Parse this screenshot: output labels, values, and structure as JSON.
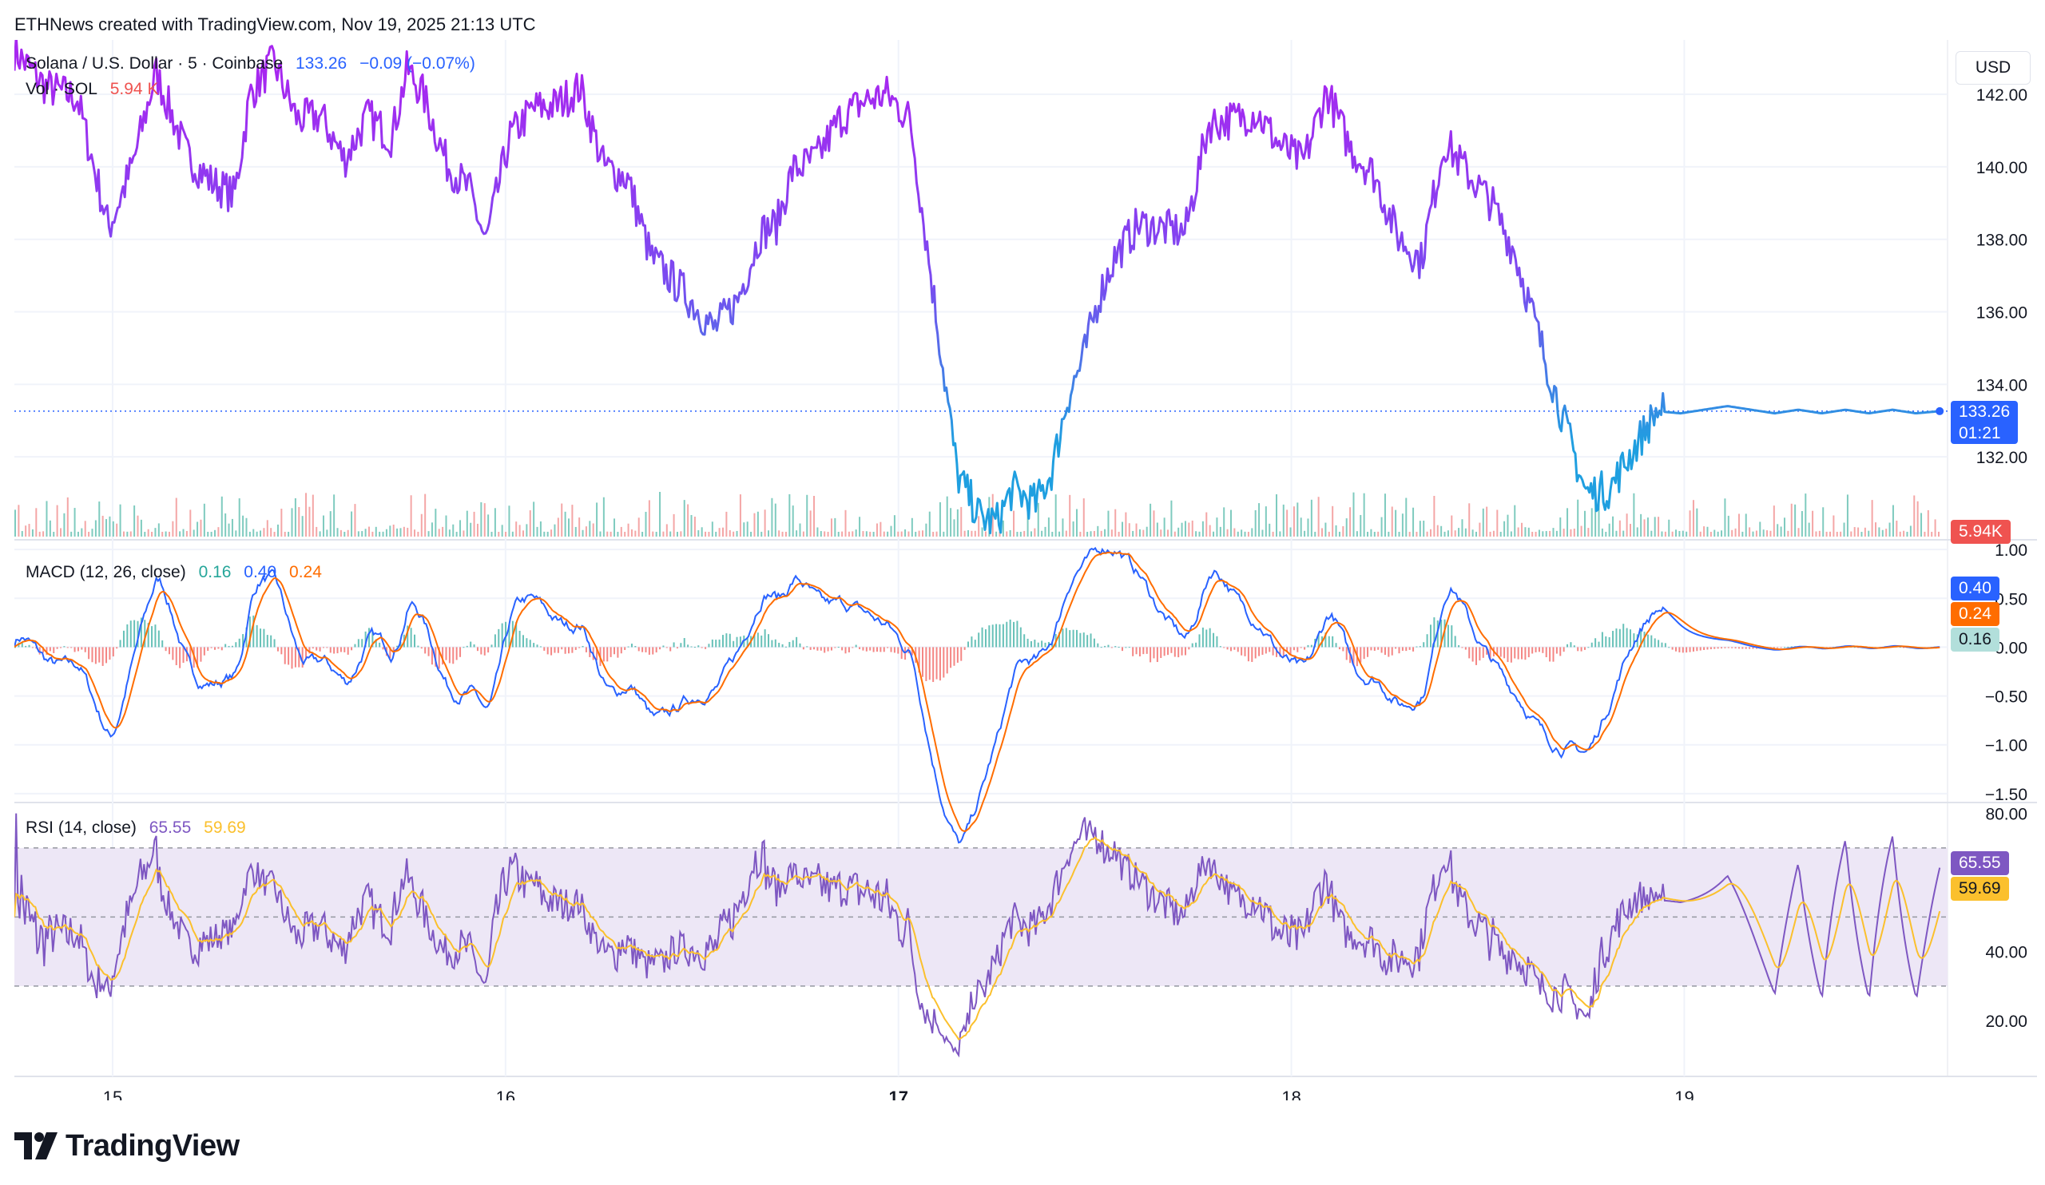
{
  "header": {
    "text": "ETHNews created with TradingView.com, Nov 19, 2025 21:13 UTC"
  },
  "currency": "USD",
  "price_legend": {
    "symbol": "Solana / U.S. Dollar · 5 · Coinbase",
    "last": "133.26",
    "change": "−0.09 (−0.07%)",
    "vol_label": "Vol · SOL",
    "vol_value": "5.94 K"
  },
  "macd_legend": {
    "title": "MACD (12, 26, close)",
    "hist": "0.16",
    "macd": "0.40",
    "signal": "0.24"
  },
  "rsi_legend": {
    "title": "RSI (14, close)",
    "rsi": "65.55",
    "ma": "59.69"
  },
  "price_labels": {
    "last": "133.26",
    "countdown": "01:21",
    "volume": "5.94K"
  },
  "macd_labels": {
    "macd": "0.40",
    "signal": "0.24",
    "hist": "0.16"
  },
  "rsi_labels": {
    "rsi": "65.55",
    "ma": "59.69"
  },
  "logo_text": "TradingView",
  "colors": {
    "price_high": "#a727f0",
    "price_low": "#1f9fe0",
    "vol_up": "#7fcbbf",
    "vol_down": "#f4a6a6",
    "macd": "#2962ff",
    "signal": "#ff6d00",
    "hist_up": "#26a69a",
    "hist_down": "#ef5350",
    "rsi": "#7e57c2",
    "rsi_ma": "#fbc02d",
    "rsi_band": "#ede7f6",
    "grid": "#f0f3fa",
    "axis_text": "#131722",
    "last_label": "#2962ff"
  },
  "chart_data": [
    {
      "type": "line",
      "name": "price",
      "x_ticks": [
        "15",
        "16",
        "17",
        "18",
        "19"
      ],
      "x_tick_pos": [
        0.25,
        1.25,
        2.25,
        3.25,
        4.25
      ],
      "y_ticks": [
        "142.00",
        "140.00",
        "138.00",
        "136.00",
        "134.00",
        "132.00"
      ],
      "ylim": [
        129.8,
        143.5
      ],
      "last_price": 133.26,
      "x": [
        0.0,
        0.08,
        0.16,
        0.24,
        0.3,
        0.36,
        0.44,
        0.5,
        0.56,
        0.6,
        0.66,
        0.72,
        0.78,
        0.84,
        0.9,
        0.96,
        1.0,
        1.04,
        1.1,
        1.16,
        1.2,
        1.26,
        1.32,
        1.38,
        1.44,
        1.5,
        1.56,
        1.62,
        1.7,
        1.78,
        1.84,
        1.9,
        1.94,
        1.98,
        2.04,
        2.1,
        2.16,
        2.22,
        2.28,
        2.34,
        2.4,
        2.46,
        2.5,
        2.54,
        2.6,
        2.64,
        2.68,
        2.72,
        2.76,
        2.8,
        2.86,
        2.92,
        2.98,
        3.04,
        3.1,
        3.16,
        3.22,
        3.28,
        3.34,
        3.4,
        3.46,
        3.52,
        3.58,
        3.64,
        3.7,
        3.76,
        3.82,
        3.88,
        3.94,
        4.0,
        4.06,
        4.12,
        4.18,
        4.24,
        4.3,
        4.36,
        4.42,
        4.48,
        4.54,
        4.6,
        4.66,
        4.72,
        4.78,
        4.84,
        4.9
      ],
      "values": [
        143.2,
        142.2,
        141.9,
        138.3,
        140.0,
        142.6,
        140.3,
        139.6,
        139.2,
        142.0,
        142.9,
        141.3,
        141.4,
        140.2,
        141.4,
        140.8,
        142.7,
        142.0,
        140.1,
        139.3,
        137.9,
        140.8,
        141.6,
        141.7,
        142.2,
        140.0,
        139.7,
        137.5,
        136.6,
        135.5,
        136.3,
        138.2,
        138.4,
        139.9,
        140.2,
        141.3,
        141.8,
        142.0,
        141.3,
        136.4,
        131.5,
        130.3,
        130.2,
        131.1,
        130.7,
        131.6,
        133.6,
        134.7,
        136.4,
        137.5,
        138.4,
        138.3,
        138.2,
        141.2,
        141.3,
        141.5,
        140.6,
        140.1,
        142.1,
        140.5,
        139.8,
        138.1,
        137.4,
        140.7,
        139.8,
        139.0,
        137.6,
        135.3,
        133.1,
        131.0,
        131.1,
        132.2,
        133.26,
        133.2,
        133.3,
        133.4,
        133.3,
        133.2,
        133.3,
        133.2,
        133.3,
        133.2,
        133.3,
        133.2,
        133.26
      ]
    },
    {
      "type": "line",
      "name": "macd",
      "y_ticks": [
        "1.00",
        "0.50",
        "0.00",
        "−0.50",
        "−1.00",
        "−1.50"
      ],
      "ylim": [
        -1.55,
        1.05
      ]
    },
    {
      "type": "line",
      "name": "rsi",
      "y_ticks": [
        "80.00",
        "40.00",
        "20.00"
      ],
      "ylim": [
        8,
        82
      ],
      "bands": [
        70,
        50,
        30
      ]
    }
  ]
}
